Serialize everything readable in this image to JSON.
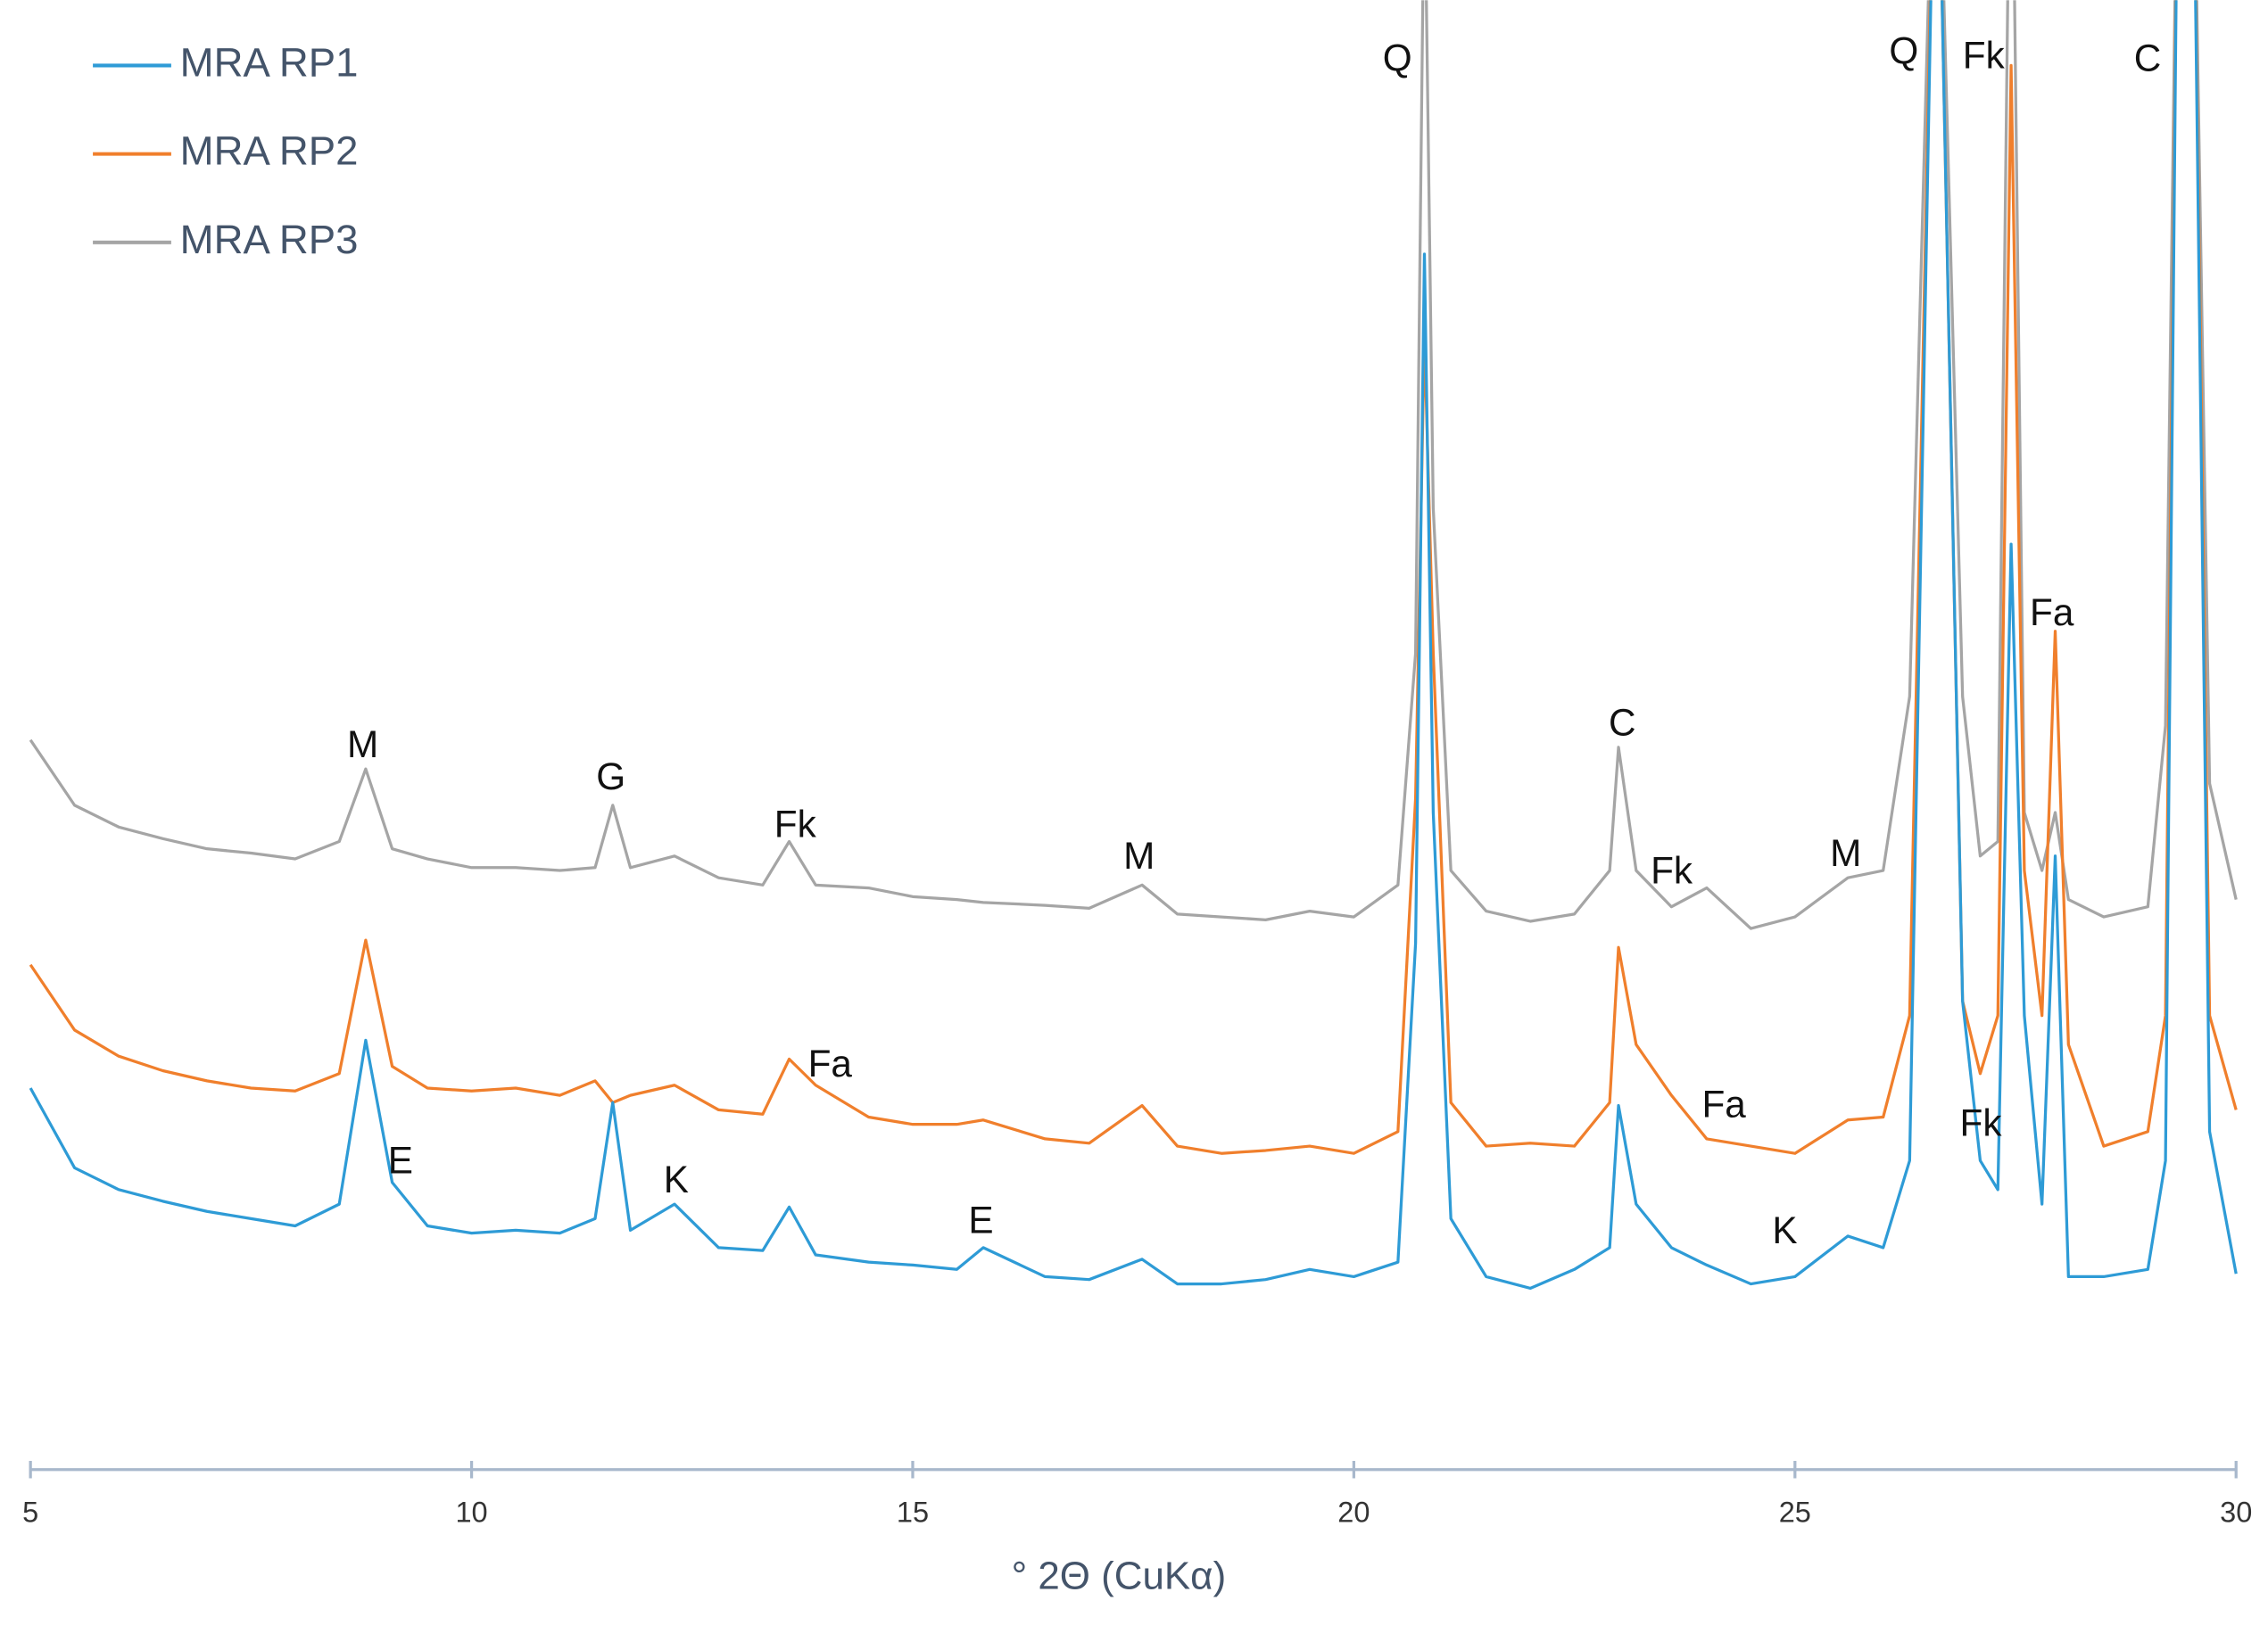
{
  "chart_data": {
    "type": "line",
    "x_label": "° 2Θ (CuKα)",
    "x": [
      5,
      5.5,
      6,
      6.5,
      7,
      7.5,
      8,
      8.5,
      8.8,
      9.1,
      9.5,
      10,
      10.5,
      11,
      11.4,
      11.6,
      11.8,
      12.3,
      12.8,
      13.3,
      13.6,
      13.9,
      14.5,
      15,
      15.5,
      15.8,
      16.5,
      17,
      17.6,
      18,
      18.5,
      19,
      19.5,
      20,
      20.5,
      20.7,
      20.8,
      20.9,
      21.1,
      21.5,
      22,
      22.5,
      22.9,
      23.0,
      23.2,
      23.6,
      24,
      24.5,
      25,
      25.6,
      26,
      26.3,
      26.6,
      26.9,
      27.1,
      27.3,
      27.45,
      27.6,
      27.8,
      27.95,
      28.1,
      28.5,
      29,
      29.2,
      29.35,
      29.5,
      29.7,
      30
    ],
    "series": [
      {
        "name": "MRA RP1",
        "color": "#2e9bd6",
        "values": [
          260,
          205,
          190,
          182,
          175,
          170,
          165,
          180,
          293,
          195,
          165,
          160,
          162,
          160,
          170,
          250,
          162,
          180,
          150,
          148,
          178,
          145,
          140,
          138,
          135,
          150,
          130,
          128,
          142,
          125,
          125,
          128,
          135,
          130,
          140,
          360,
          835,
          450,
          170,
          130,
          122,
          135,
          150,
          248,
          180,
          150,
          138,
          125,
          130,
          158,
          150,
          210,
          1210,
          320,
          210,
          190,
          635,
          310,
          180,
          420,
          130,
          130,
          135,
          210,
          1210,
          1210,
          230,
          132
        ]
      },
      {
        "name": "MRA RP2",
        "color": "#f07f2c",
        "values": [
          345,
          300,
          282,
          272,
          265,
          260,
          258,
          270,
          362,
          275,
          260,
          258,
          260,
          255,
          265,
          250,
          255,
          262,
          245,
          242,
          280,
          262,
          240,
          235,
          235,
          238,
          225,
          222,
          248,
          220,
          215,
          217,
          220,
          215,
          230,
          460,
          780,
          560,
          250,
          220,
          222,
          220,
          250,
          357,
          290,
          255,
          225,
          220,
          215,
          238,
          240,
          310,
          1210,
          320,
          270,
          310,
          965,
          410,
          310,
          575,
          290,
          220,
          230,
          310,
          1210,
          1210,
          310,
          245
        ]
      },
      {
        "name": "MRA RP3",
        "color": "#a5a5a5",
        "values": [
          500,
          455,
          440,
          432,
          425,
          422,
          418,
          430,
          480,
          425,
          418,
          412,
          412,
          410,
          412,
          455,
          412,
          420,
          405,
          400,
          430,
          400,
          398,
          392,
          390,
          388,
          386,
          384,
          400,
          380,
          378,
          376,
          382,
          378,
          400,
          560,
          1110,
          660,
          410,
          382,
          375,
          380,
          410,
          495,
          410,
          385,
          398,
          370,
          378,
          405,
          410,
          530,
          1210,
          530,
          420,
          430,
          1210,
          450,
          410,
          450,
          390,
          378,
          385,
          510,
          1210,
          1210,
          470,
          390
        ]
      }
    ],
    "xlim": [
      5,
      30
    ],
    "xticks": [
      5,
      10,
      15,
      20,
      25,
      30
    ],
    "ylim": [
      0,
      1000
    ],
    "legend": "top-left",
    "annotations": [
      "M",
      "G",
      "Fk",
      "M",
      "Q",
      "C",
      "Fk",
      "M",
      "Q",
      "Fk",
      "C",
      "Fa",
      "Fa",
      "Fa",
      "E",
      "K",
      "E",
      "Fk",
      "K"
    ]
  }
}
